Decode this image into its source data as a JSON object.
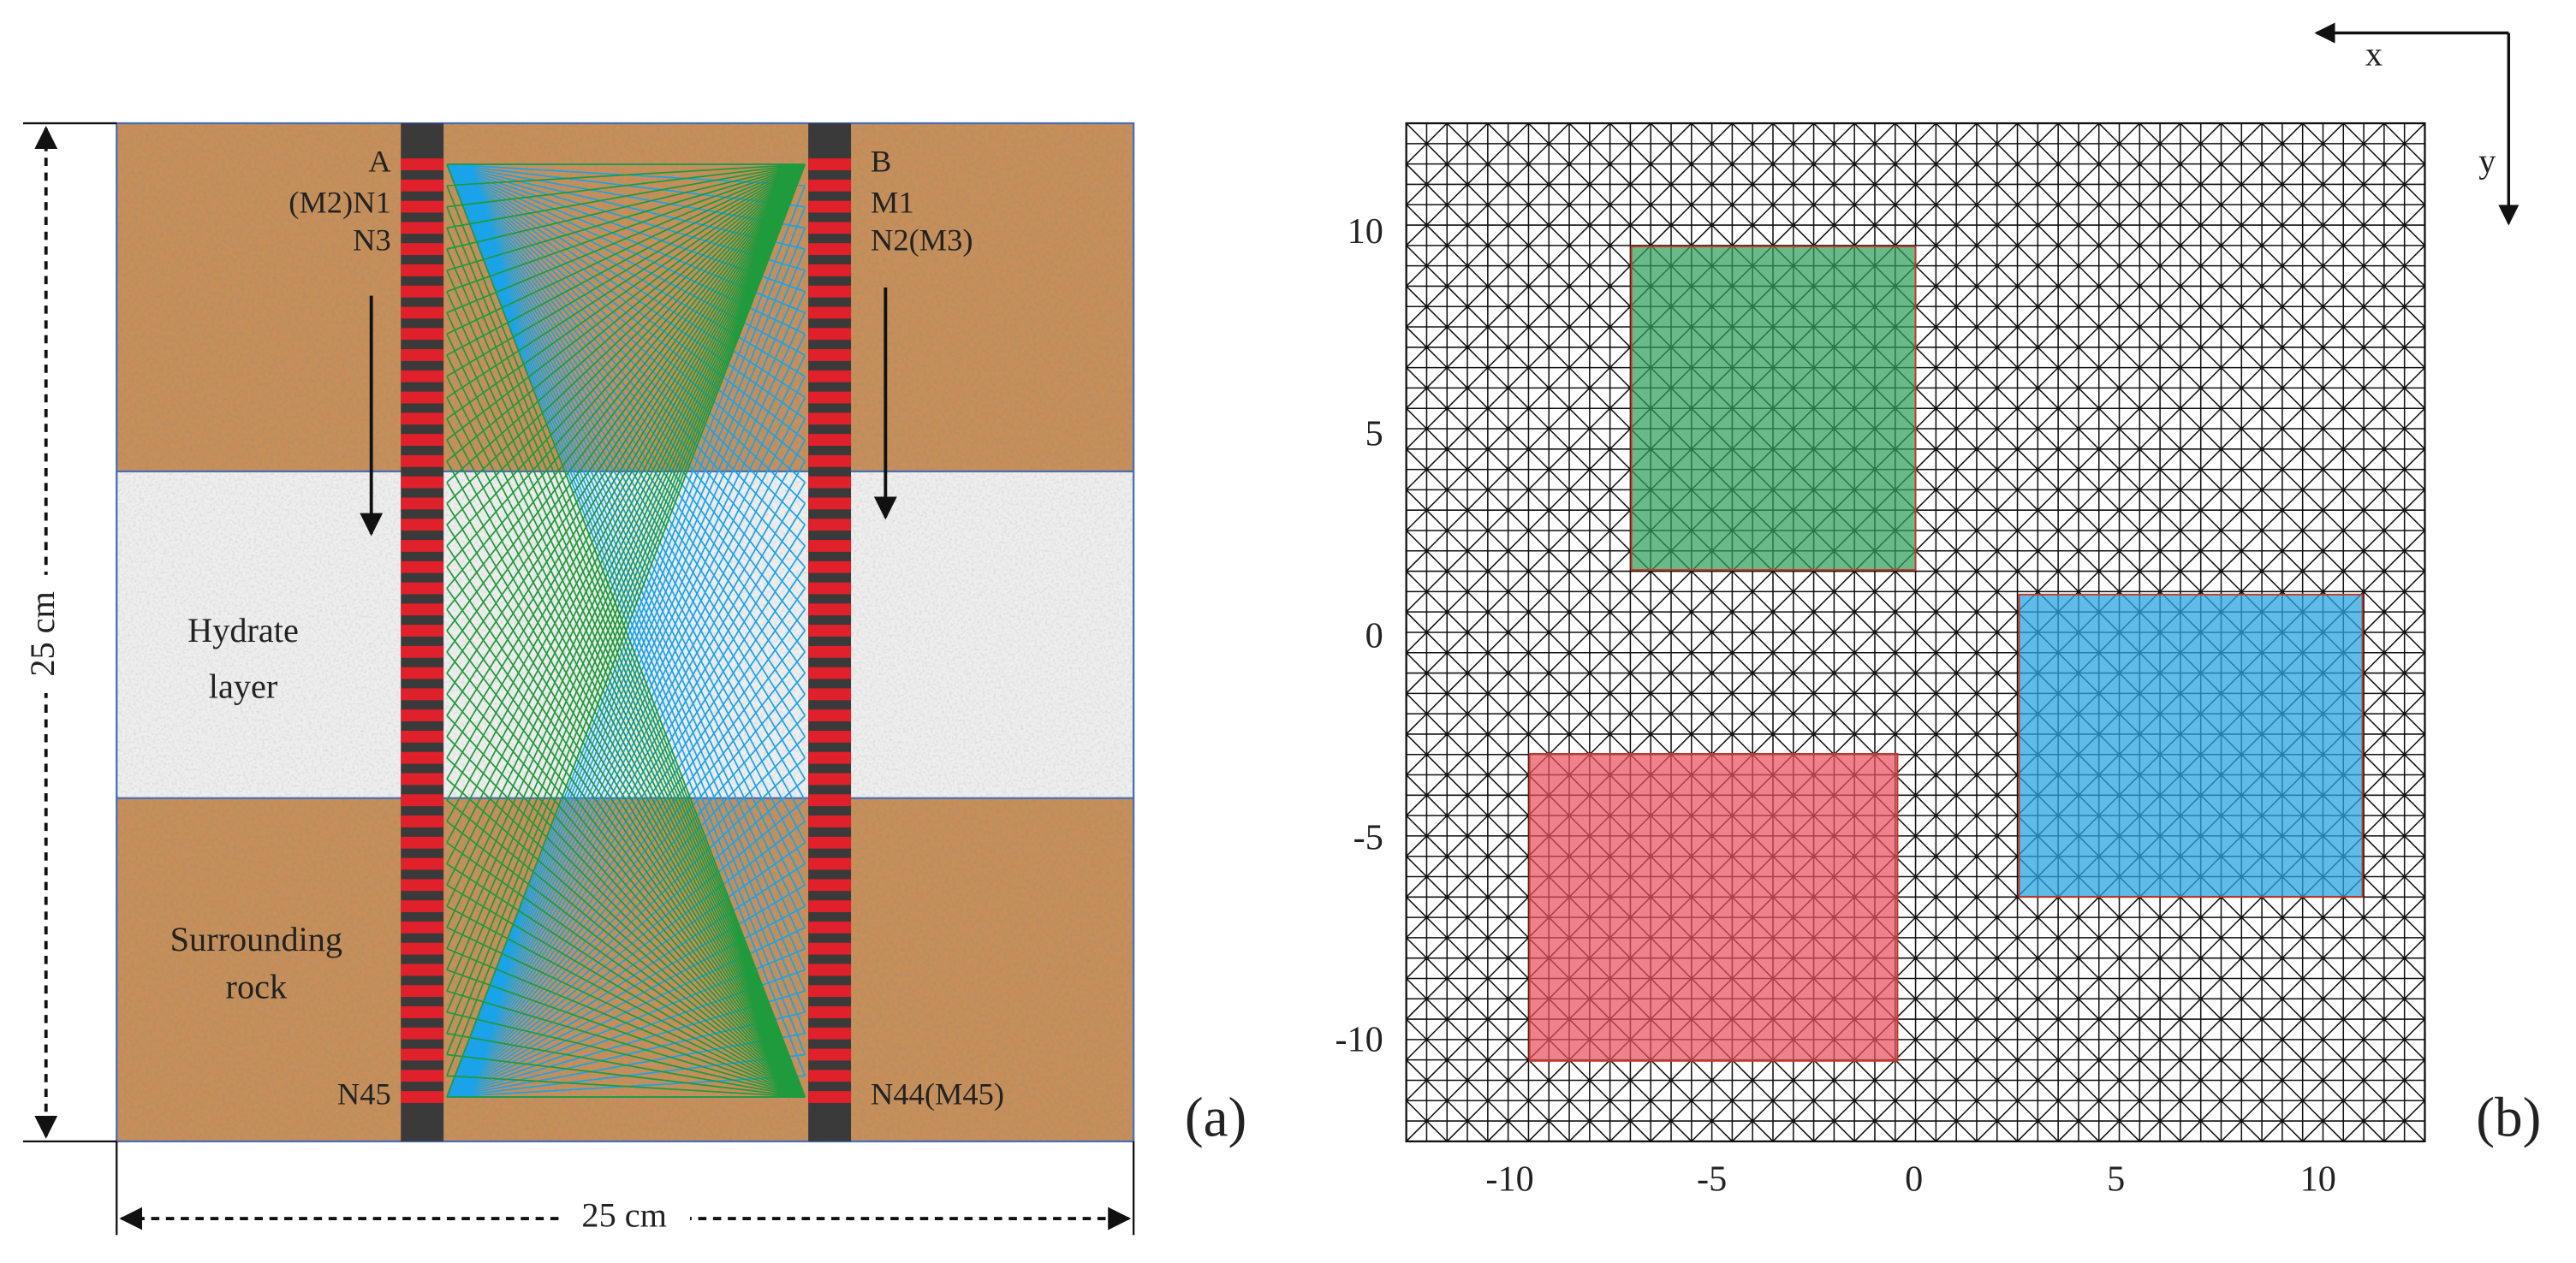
{
  "panel_a": {
    "label": "(a)",
    "borehole_a": {
      "name": "A",
      "first": "(M2)N1",
      "second": "N3",
      "last": "N45"
    },
    "borehole_b": {
      "name": "B",
      "first": "M1",
      "second": "N2(M3)",
      "last": "N44(M45)"
    },
    "hydrate_label": [
      "Hydrate",
      "layer"
    ],
    "rock_label": [
      "Surrounding",
      "rock"
    ],
    "height_label": "25 cm",
    "width_label": "25 cm"
  },
  "panel_b": {
    "label": "(b)",
    "xticks": [
      -10,
      -5,
      0,
      5,
      10
    ],
    "yticks": [
      10,
      5,
      0,
      -5,
      -10
    ],
    "axis_x": "x",
    "axis_y": "y"
  }
}
